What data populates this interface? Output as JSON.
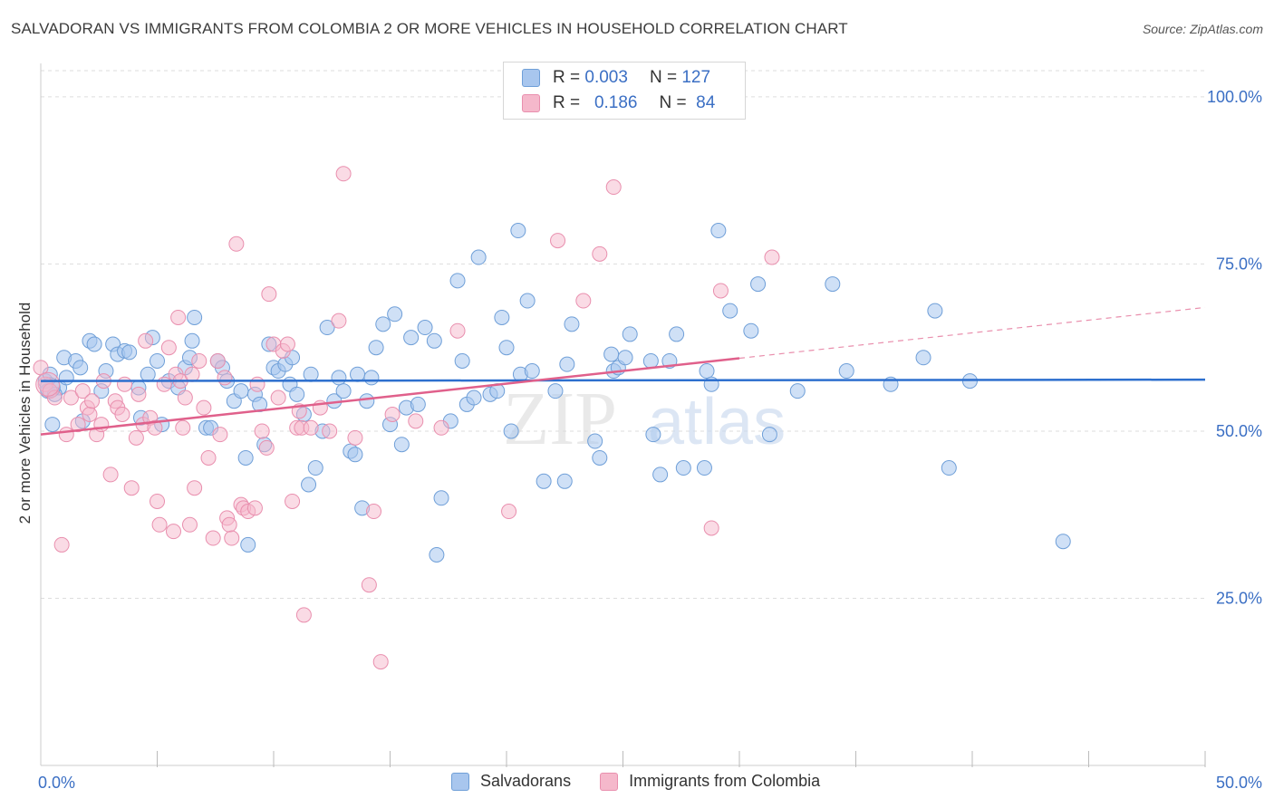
{
  "header": {
    "title": "SALVADORAN VS IMMIGRANTS FROM COLOMBIA 2 OR MORE VEHICLES IN HOUSEHOLD CORRELATION CHART",
    "source": "Source: ZipAtlas.com"
  },
  "stats_legend": {
    "rows": [
      {
        "r_label": "R =",
        "r_value": "0.003",
        "n_label": "N =",
        "n_value": "127"
      },
      {
        "r_label": "R =",
        "r_value": "0.186",
        "n_label": "N =",
        "n_value": "84"
      }
    ]
  },
  "watermark": {
    "zip": "ZIP",
    "atlas": "atlas"
  },
  "colors": {
    "blue_fill": "#a8c6ee",
    "blue_stroke": "#6f9fd8",
    "blue_line": "#2d6fce",
    "pink_fill": "#f5b8cb",
    "pink_stroke": "#e98fae",
    "pink_line": "#e0608b",
    "axis_label": "#3b6fc4",
    "grid": "#dddddd"
  },
  "chart_data": {
    "type": "scatter",
    "title": "SALVADORAN VS IMMIGRANTS FROM COLOMBIA 2 OR MORE VEHICLES IN HOUSEHOLD CORRELATION CHART",
    "xlabel": "",
    "ylabel": "2 or more Vehicles in Household",
    "xlim": [
      0,
      50
    ],
    "ylim": [
      0,
      105
    ],
    "x_tick_labels": [
      {
        "value": 0,
        "label": "0.0%"
      },
      {
        "value": 50,
        "label": "50.0%"
      }
    ],
    "y_tick_labels": [
      {
        "value": 25,
        "label": "25.0%"
      },
      {
        "value": 50,
        "label": "50.0%"
      },
      {
        "value": 75,
        "label": "75.0%"
      },
      {
        "value": 100,
        "label": "100.0%"
      }
    ],
    "x_minor_ticks": [
      5,
      10,
      15,
      20,
      25,
      30,
      35,
      40,
      45,
      50
    ],
    "legend": [
      "Salvadorans",
      "Immigrants from Colombia"
    ],
    "series": [
      {
        "name": "Salvadorans",
        "color": "#a8c6ee",
        "trend": {
          "x_start": 0,
          "y_start": 57.5,
          "x_end": 50,
          "y_end": 57.7,
          "dashed_from": null
        },
        "points": [
          [
            0.2,
            57.5
          ],
          [
            0.3,
            56.0
          ],
          [
            0.4,
            58.5
          ],
          [
            0.5,
            51.0
          ],
          [
            0.8,
            56.5
          ],
          [
            1.0,
            61.0
          ],
          [
            1.1,
            58.0
          ],
          [
            1.5,
            60.5
          ],
          [
            1.7,
            59.5
          ],
          [
            1.8,
            51.5
          ],
          [
            2.1,
            63.5
          ],
          [
            2.3,
            63.0
          ],
          [
            2.6,
            56.0
          ],
          [
            2.8,
            59.0
          ],
          [
            3.1,
            63.0
          ],
          [
            3.3,
            61.5
          ],
          [
            3.6,
            62.0
          ],
          [
            3.8,
            61.8
          ],
          [
            4.2,
            56.5
          ],
          [
            4.3,
            52.0
          ],
          [
            4.6,
            58.5
          ],
          [
            4.8,
            64.0
          ],
          [
            5.0,
            60.5
          ],
          [
            5.2,
            51.0
          ],
          [
            5.5,
            57.5
          ],
          [
            5.9,
            56.5
          ],
          [
            6.2,
            59.5
          ],
          [
            6.4,
            61.0
          ],
          [
            6.5,
            63.5
          ],
          [
            6.6,
            67.0
          ],
          [
            7.1,
            50.5
          ],
          [
            7.3,
            50.5
          ],
          [
            7.6,
            60.5
          ],
          [
            7.8,
            59.5
          ],
          [
            8.0,
            57.5
          ],
          [
            8.3,
            54.5
          ],
          [
            8.6,
            56.0
          ],
          [
            8.8,
            46.0
          ],
          [
            8.9,
            33.0
          ],
          [
            9.2,
            55.5
          ],
          [
            9.4,
            54.0
          ],
          [
            9.6,
            48.0
          ],
          [
            9.8,
            63.0
          ],
          [
            10.0,
            59.5
          ],
          [
            10.2,
            59.0
          ],
          [
            10.5,
            60.0
          ],
          [
            10.7,
            57.0
          ],
          [
            10.8,
            61.0
          ],
          [
            11.0,
            55.5
          ],
          [
            11.3,
            52.5
          ],
          [
            11.5,
            42.0
          ],
          [
            11.6,
            58.5
          ],
          [
            11.8,
            44.5
          ],
          [
            12.1,
            50.0
          ],
          [
            12.3,
            65.5
          ],
          [
            12.6,
            54.5
          ],
          [
            12.8,
            58.0
          ],
          [
            13.0,
            56.0
          ],
          [
            13.3,
            47.0
          ],
          [
            13.5,
            46.5
          ],
          [
            13.6,
            58.5
          ],
          [
            13.8,
            38.5
          ],
          [
            14.0,
            54.5
          ],
          [
            14.2,
            58.0
          ],
          [
            14.4,
            62.5
          ],
          [
            14.7,
            66.0
          ],
          [
            15.0,
            51.0
          ],
          [
            15.2,
            67.5
          ],
          [
            15.5,
            48.0
          ],
          [
            15.7,
            53.5
          ],
          [
            15.9,
            64.0
          ],
          [
            16.2,
            54.0
          ],
          [
            16.5,
            65.5
          ],
          [
            16.9,
            63.5
          ],
          [
            17.0,
            31.5
          ],
          [
            17.2,
            40.0
          ],
          [
            17.6,
            51.5
          ],
          [
            17.9,
            72.5
          ],
          [
            18.1,
            60.5
          ],
          [
            18.3,
            54.0
          ],
          [
            18.6,
            55.0
          ],
          [
            18.8,
            76.0
          ],
          [
            19.3,
            55.5
          ],
          [
            19.6,
            56.0
          ],
          [
            19.8,
            67.0
          ],
          [
            20.0,
            62.5
          ],
          [
            20.2,
            50.0
          ],
          [
            20.5,
            80.0
          ],
          [
            20.6,
            58.5
          ],
          [
            20.9,
            69.5
          ],
          [
            21.1,
            59.0
          ],
          [
            21.6,
            42.5
          ],
          [
            22.1,
            56.0
          ],
          [
            22.5,
            42.5
          ],
          [
            22.6,
            60.0
          ],
          [
            22.8,
            66.0
          ],
          [
            23.8,
            48.5
          ],
          [
            24.0,
            46.0
          ],
          [
            24.5,
            61.5
          ],
          [
            24.6,
            59.0
          ],
          [
            24.8,
            59.5
          ],
          [
            25.1,
            61.0
          ],
          [
            25.3,
            64.5
          ],
          [
            26.2,
            60.5
          ],
          [
            26.3,
            49.5
          ],
          [
            26.6,
            43.5
          ],
          [
            27.0,
            60.5
          ],
          [
            27.3,
            64.5
          ],
          [
            27.6,
            44.5
          ],
          [
            28.5,
            44.5
          ],
          [
            28.6,
            59.0
          ],
          [
            28.8,
            57.0
          ],
          [
            29.1,
            80.0
          ],
          [
            29.6,
            68.0
          ],
          [
            30.5,
            65.0
          ],
          [
            30.8,
            72.0
          ],
          [
            31.3,
            49.5
          ],
          [
            32.5,
            56.0
          ],
          [
            34.0,
            72.0
          ],
          [
            34.6,
            59.0
          ],
          [
            36.5,
            57.0
          ],
          [
            37.9,
            61.0
          ],
          [
            38.4,
            68.0
          ],
          [
            39.0,
            44.5
          ],
          [
            39.9,
            57.5
          ],
          [
            43.9,
            33.5
          ],
          [
            0.6,
            55.5
          ]
        ]
      },
      {
        "name": "Immigrants from Colombia",
        "color": "#f5b8cb",
        "trend": {
          "x_start": 0,
          "y_start": 49.5,
          "x_end": 50,
          "y_end": 68.5,
          "dashed_from": 30
        },
        "points": [
          [
            0.0,
            59.5
          ],
          [
            0.2,
            57.0
          ],
          [
            0.4,
            56.0
          ],
          [
            0.6,
            55.0
          ],
          [
            0.9,
            33.0
          ],
          [
            1.1,
            49.5
          ],
          [
            1.3,
            55.0
          ],
          [
            1.6,
            51.0
          ],
          [
            1.8,
            56.0
          ],
          [
            2.0,
            53.5
          ],
          [
            2.1,
            52.5
          ],
          [
            2.2,
            54.5
          ],
          [
            2.4,
            49.5
          ],
          [
            2.6,
            51.0
          ],
          [
            2.7,
            57.5
          ],
          [
            3.0,
            43.5
          ],
          [
            3.2,
            54.5
          ],
          [
            3.3,
            53.5
          ],
          [
            3.5,
            52.5
          ],
          [
            3.6,
            57.0
          ],
          [
            3.9,
            41.5
          ],
          [
            4.1,
            49.0
          ],
          [
            4.2,
            55.5
          ],
          [
            4.4,
            51.0
          ],
          [
            4.5,
            63.5
          ],
          [
            4.7,
            52.0
          ],
          [
            4.9,
            50.5
          ],
          [
            5.0,
            39.5
          ],
          [
            5.1,
            36.0
          ],
          [
            5.3,
            57.0
          ],
          [
            5.5,
            62.5
          ],
          [
            5.7,
            35.0
          ],
          [
            5.8,
            58.5
          ],
          [
            5.9,
            67.0
          ],
          [
            6.0,
            57.5
          ],
          [
            6.1,
            50.5
          ],
          [
            6.2,
            55.0
          ],
          [
            6.4,
            36.0
          ],
          [
            6.5,
            58.5
          ],
          [
            6.6,
            41.5
          ],
          [
            6.8,
            60.5
          ],
          [
            7.0,
            53.5
          ],
          [
            7.2,
            46.0
          ],
          [
            7.4,
            34.0
          ],
          [
            7.6,
            60.5
          ],
          [
            7.7,
            49.5
          ],
          [
            7.9,
            58.0
          ],
          [
            8.0,
            37.0
          ],
          [
            8.1,
            36.0
          ],
          [
            8.2,
            34.0
          ],
          [
            8.4,
            78.0
          ],
          [
            8.6,
            39.0
          ],
          [
            8.7,
            38.5
          ],
          [
            8.9,
            38.0
          ],
          [
            9.2,
            38.5
          ],
          [
            9.3,
            57.0
          ],
          [
            9.5,
            50.0
          ],
          [
            9.7,
            47.5
          ],
          [
            9.8,
            70.5
          ],
          [
            10.0,
            63.0
          ],
          [
            10.2,
            55.0
          ],
          [
            10.4,
            62.0
          ],
          [
            10.6,
            63.0
          ],
          [
            10.8,
            39.5
          ],
          [
            11.0,
            50.5
          ],
          [
            11.1,
            53.0
          ],
          [
            11.2,
            50.5
          ],
          [
            11.3,
            22.5
          ],
          [
            11.6,
            50.5
          ],
          [
            12.0,
            53.5
          ],
          [
            12.4,
            50.0
          ],
          [
            12.8,
            66.5
          ],
          [
            13.5,
            49.0
          ],
          [
            14.1,
            27.0
          ],
          [
            14.3,
            38.0
          ],
          [
            14.6,
            15.5
          ],
          [
            15.1,
            52.5
          ],
          [
            16.1,
            51.5
          ],
          [
            17.2,
            50.5
          ],
          [
            17.9,
            65.0
          ],
          [
            20.1,
            38.0
          ],
          [
            22.2,
            78.5
          ],
          [
            24.0,
            76.5
          ],
          [
            28.8,
            35.5
          ]
        ]
      }
    ]
  },
  "extra_pink_points": [
    [
      13.0,
      88.5
    ],
    [
      24.6,
      86.5
    ],
    [
      29.2,
      71.0
    ],
    [
      31.4,
      76.0
    ],
    [
      23.3,
      69.5
    ]
  ],
  "bottom_legend": {
    "items": [
      {
        "label": "Salvadorans"
      },
      {
        "label": "Immigrants from Colombia"
      }
    ]
  }
}
